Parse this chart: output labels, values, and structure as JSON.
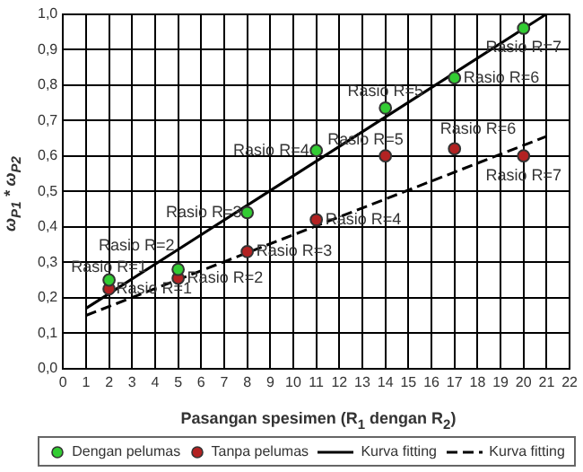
{
  "chart_data": {
    "type": "scatter",
    "xlabel": "Pasangan spesimen (R$_{1}$ dengan R$_{2}$)",
    "ylabel": "ω$_{P1}$ * ω$_{P2}$",
    "xlim": [
      0,
      22
    ],
    "xticks": [
      0,
      1,
      2,
      3,
      4,
      5,
      6,
      7,
      8,
      9,
      10,
      11,
      12,
      13,
      14,
      15,
      16,
      17,
      18,
      19,
      20,
      21,
      22
    ],
    "ylim": [
      0,
      1
    ],
    "yticks": [
      {
        "value": 0,
        "label": "0,0"
      },
      {
        "value": 0.1,
        "label": "0,1"
      },
      {
        "value": 0.2,
        "label": "0,2"
      },
      {
        "value": 0.3,
        "label": "0,3"
      },
      {
        "value": 0.4,
        "label": "0,4"
      },
      {
        "value": 0.5,
        "label": "0,5"
      },
      {
        "value": 0.6,
        "label": "0,6"
      },
      {
        "value": 0.7,
        "label": "0,7"
      },
      {
        "value": 0.8,
        "label": "0,8"
      },
      {
        "value": 0.9,
        "label": "0,9"
      },
      {
        "value": 1,
        "label": "1,0"
      }
    ],
    "grid": true,
    "legend": "bottom",
    "series": [
      {
        "name": "Dengan pelumas",
        "type": "scatter",
        "marker": "circle",
        "color": "#33cc33",
        "x": [
          2,
          5,
          8,
          11,
          14,
          17,
          20
        ],
        "values": [
          0.25,
          0.28,
          0.44,
          0.615,
          0.735,
          0.82,
          0.96
        ]
      },
      {
        "name": "Tanpa pelumas",
        "type": "scatter",
        "marker": "circle",
        "color": "#b22222",
        "x": [
          2,
          5,
          8,
          11,
          14,
          17,
          20
        ],
        "values": [
          0.225,
          0.255,
          0.33,
          0.42,
          0.6,
          0.62,
          0.6
        ]
      },
      {
        "name": "Kurva fitting",
        "type": "line",
        "marker": "none",
        "line_style": "solid",
        "color": "#000000",
        "x": [
          1,
          21
        ],
        "values": [
          0.17,
          1.0
        ]
      },
      {
        "name": "Kurva fitting",
        "type": "line",
        "marker": "none",
        "line_style": "dashed",
        "color": "#000000",
        "x": [
          1,
          21
        ],
        "values": [
          0.15,
          0.655
        ]
      }
    ],
    "annotations": [
      {
        "text": "Rasio R=1",
        "x": 2,
        "y": 0.25
      },
      {
        "text": "Rasio R=2",
        "x": 5,
        "y": 0.28
      },
      {
        "text": "Rasio R=3",
        "x": 8,
        "y": 0.44
      },
      {
        "text": "Rasio R=4",
        "x": 11,
        "y": 0.615
      },
      {
        "text": "Rasio R=5",
        "x": 14,
        "y": 0.735
      },
      {
        "text": "Rasio R=6",
        "x": 17,
        "y": 0.82
      },
      {
        "text": "Rasio R=7",
        "x": 20,
        "y": 0.96
      },
      {
        "text": "Rasio R=1",
        "x": 2,
        "y": 0.225
      },
      {
        "text": "Rasio R=2",
        "x": 5,
        "y": 0.255
      },
      {
        "text": "Rasio R=3",
        "x": 8,
        "y": 0.33
      },
      {
        "text": "Rasio R=4",
        "x": 11,
        "y": 0.42
      },
      {
        "text": "Rasio R=5",
        "x": 14,
        "y": 0.6
      },
      {
        "text": "Rasio R=6",
        "x": 17,
        "y": 0.62
      },
      {
        "text": "Rasio R=7",
        "x": 20,
        "y": 0.6
      }
    ]
  }
}
